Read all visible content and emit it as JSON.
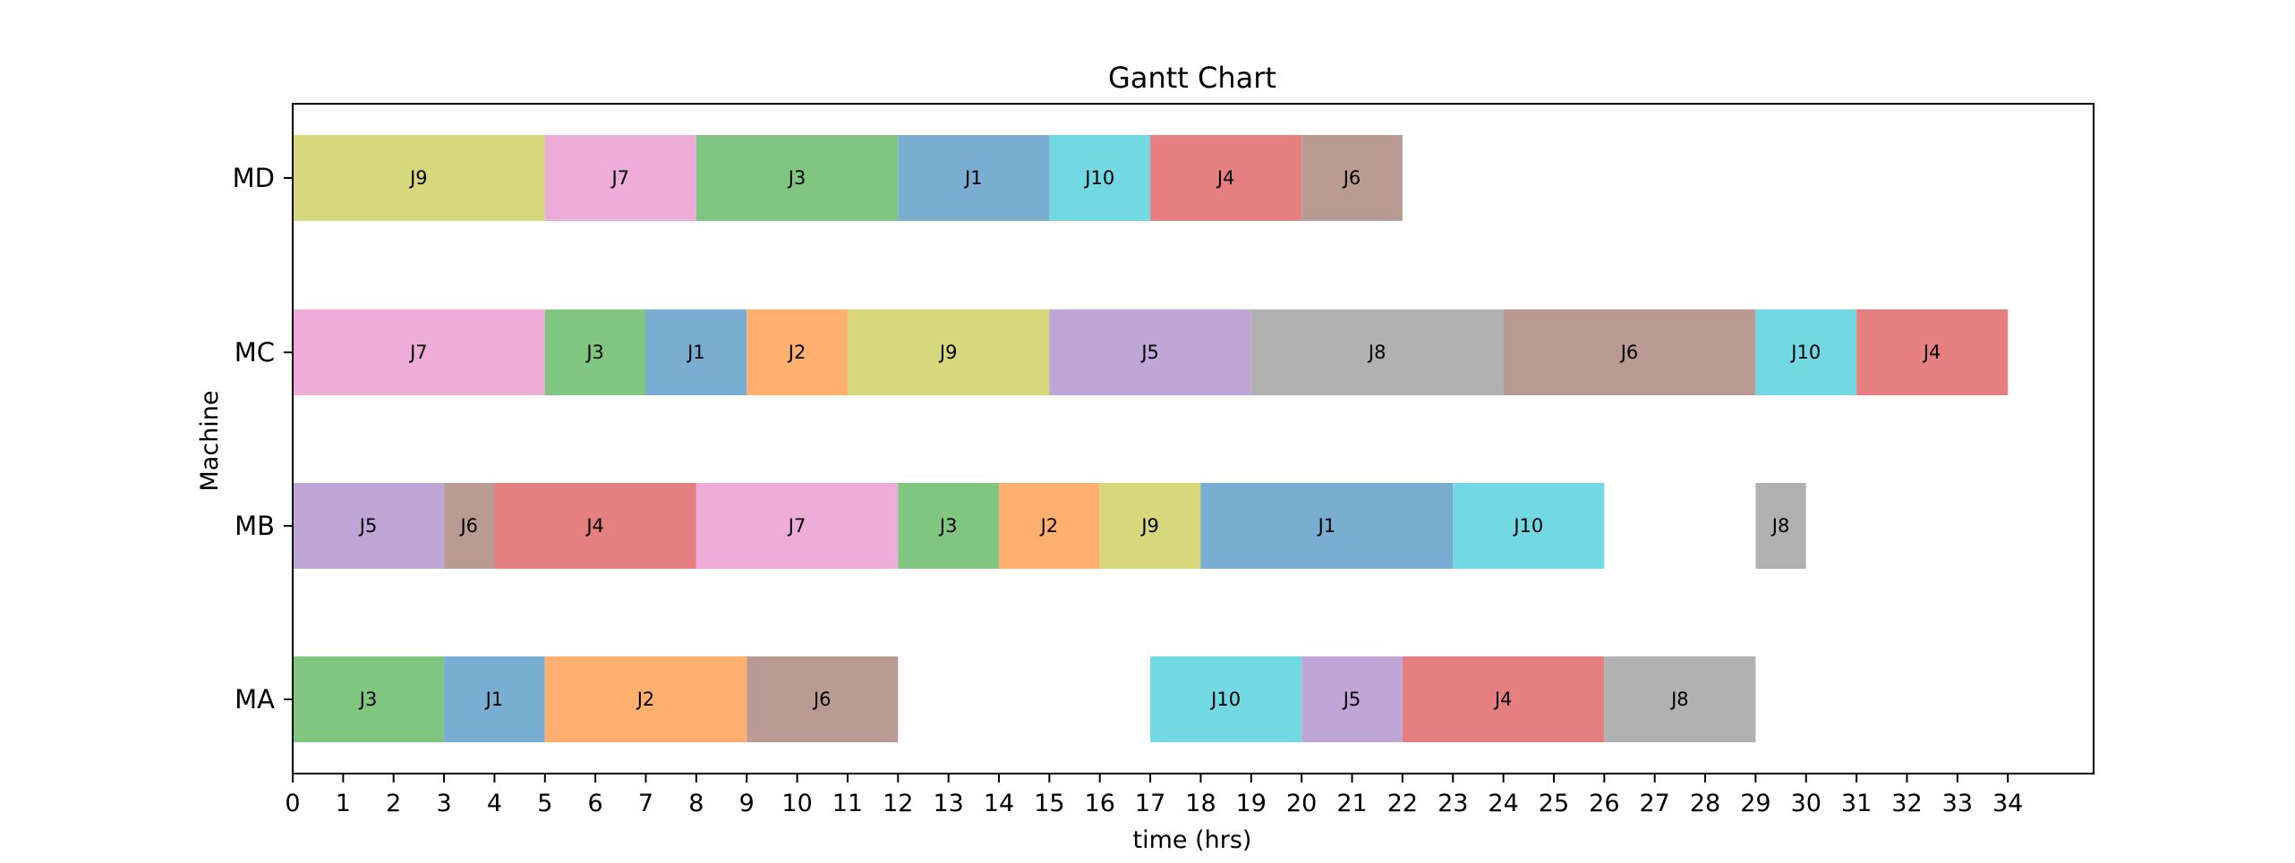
{
  "chart_data": {
    "type": "gantt",
    "title": "Gantt Chart",
    "xlabel": "time (hrs)",
    "ylabel": "Machine",
    "xlim": [
      0,
      35.7
    ],
    "xticks": [
      0,
      1,
      2,
      3,
      4,
      5,
      6,
      7,
      8,
      9,
      10,
      11,
      12,
      13,
      14,
      15,
      16,
      17,
      18,
      19,
      20,
      21,
      22,
      23,
      24,
      25,
      26,
      27,
      28,
      29,
      30,
      31,
      32,
      33,
      34
    ],
    "machines": [
      "MA",
      "MB",
      "MC",
      "MD"
    ],
    "colors": {
      "J1": "#7aadd2",
      "J2": "#ffb06f",
      "J3": "#80c680",
      "J4": "#e67f7f",
      "J5": "#bfa6d6",
      "J6": "#ba9b93",
      "J7": "#eeadd9",
      "J8": "#b1b1b1",
      "J9": "#d6d87b",
      "J10": "#72d8e2"
    },
    "tasks": [
      {
        "machine": "MA",
        "job": "J3",
        "start": 0,
        "end": 3
      },
      {
        "machine": "MA",
        "job": "J1",
        "start": 3,
        "end": 5
      },
      {
        "machine": "MA",
        "job": "J2",
        "start": 5,
        "end": 9
      },
      {
        "machine": "MA",
        "job": "J6",
        "start": 9,
        "end": 12
      },
      {
        "machine": "MA",
        "job": "J10",
        "start": 17,
        "end": 20
      },
      {
        "machine": "MA",
        "job": "J5",
        "start": 20,
        "end": 22
      },
      {
        "machine": "MA",
        "job": "J4",
        "start": 22,
        "end": 26
      },
      {
        "machine": "MA",
        "job": "J8",
        "start": 26,
        "end": 29
      },
      {
        "machine": "MB",
        "job": "J5",
        "start": 0,
        "end": 3
      },
      {
        "machine": "MB",
        "job": "J6",
        "start": 3,
        "end": 4
      },
      {
        "machine": "MB",
        "job": "J4",
        "start": 4,
        "end": 8
      },
      {
        "machine": "MB",
        "job": "J7",
        "start": 8,
        "end": 12
      },
      {
        "machine": "MB",
        "job": "J3",
        "start": 12,
        "end": 14
      },
      {
        "machine": "MB",
        "job": "J2",
        "start": 14,
        "end": 16
      },
      {
        "machine": "MB",
        "job": "J9",
        "start": 16,
        "end": 18
      },
      {
        "machine": "MB",
        "job": "J1",
        "start": 18,
        "end": 23
      },
      {
        "machine": "MB",
        "job": "J10",
        "start": 23,
        "end": 26
      },
      {
        "machine": "MB",
        "job": "J8",
        "start": 29,
        "end": 30
      },
      {
        "machine": "MC",
        "job": "J7",
        "start": 0,
        "end": 5
      },
      {
        "machine": "MC",
        "job": "J3",
        "start": 5,
        "end": 7
      },
      {
        "machine": "MC",
        "job": "J1",
        "start": 7,
        "end": 9
      },
      {
        "machine": "MC",
        "job": "J2",
        "start": 9,
        "end": 11
      },
      {
        "machine": "MC",
        "job": "J9",
        "start": 11,
        "end": 15
      },
      {
        "machine": "MC",
        "job": "J5",
        "start": 15,
        "end": 19
      },
      {
        "machine": "MC",
        "job": "J8",
        "start": 19,
        "end": 24
      },
      {
        "machine": "MC",
        "job": "J6",
        "start": 24,
        "end": 29
      },
      {
        "machine": "MC",
        "job": "J10",
        "start": 29,
        "end": 31
      },
      {
        "machine": "MC",
        "job": "J4",
        "start": 31,
        "end": 34
      },
      {
        "machine": "MD",
        "job": "J9",
        "start": 0,
        "end": 5
      },
      {
        "machine": "MD",
        "job": "J7",
        "start": 5,
        "end": 8
      },
      {
        "machine": "MD",
        "job": "J3",
        "start": 8,
        "end": 12
      },
      {
        "machine": "MD",
        "job": "J1",
        "start": 12,
        "end": 15
      },
      {
        "machine": "MD",
        "job": "J10",
        "start": 15,
        "end": 17
      },
      {
        "machine": "MD",
        "job": "J4",
        "start": 17,
        "end": 20
      },
      {
        "machine": "MD",
        "job": "J6",
        "start": 20,
        "end": 22
      }
    ]
  }
}
